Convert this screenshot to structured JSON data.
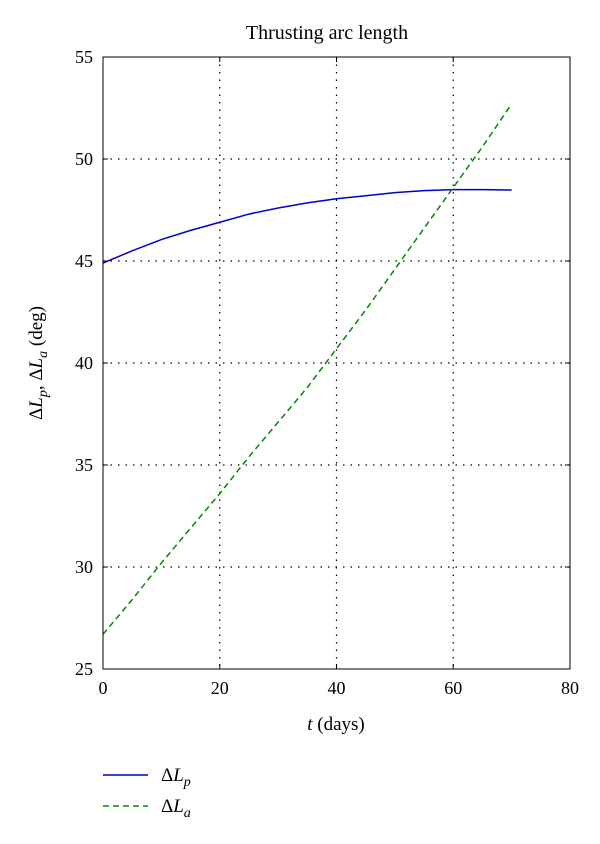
{
  "chart_data": {
    "type": "line",
    "title": "Thrusting arc length",
    "xlabel": {
      "var": "t",
      "unit": " (days)"
    },
    "ylabel": {
      "delta": "Δ",
      "L": "L",
      "p": "p",
      "sep": ", ",
      "a": "a",
      "unit": " (deg)"
    },
    "xlim": [
      0,
      80
    ],
    "ylim": [
      25,
      55
    ],
    "xticks": [
      0,
      20,
      40,
      60,
      80
    ],
    "yticks": [
      25,
      30,
      35,
      40,
      45,
      50,
      55
    ],
    "grid": true,
    "legend_position": "bottom-left (below plot)",
    "series": [
      {
        "name": {
          "delta": "Δ",
          "L": "L",
          "sub": "p"
        },
        "style": "solid",
        "color": "#0000cc",
        "x": [
          0,
          5,
          10,
          15,
          20,
          25,
          30,
          35,
          40,
          45,
          50,
          55,
          60,
          65,
          70
        ],
        "y": [
          44.9,
          45.5,
          46.05,
          46.5,
          46.9,
          47.3,
          47.6,
          47.85,
          48.05,
          48.2,
          48.35,
          48.45,
          48.5,
          48.5,
          48.48
        ]
      },
      {
        "name": {
          "delta": "Δ",
          "L": "L",
          "sub": "a"
        },
        "style": "dashed",
        "color": "#008800",
        "x": [
          0,
          5,
          10,
          15,
          20,
          25,
          30,
          35,
          40,
          45,
          50,
          55,
          60,
          65,
          70
        ],
        "y": [
          26.7,
          28.4,
          30.2,
          31.9,
          33.6,
          35.4,
          37.1,
          38.8,
          40.7,
          42.6,
          44.6,
          46.6,
          48.6,
          50.6,
          52.7
        ]
      }
    ]
  }
}
